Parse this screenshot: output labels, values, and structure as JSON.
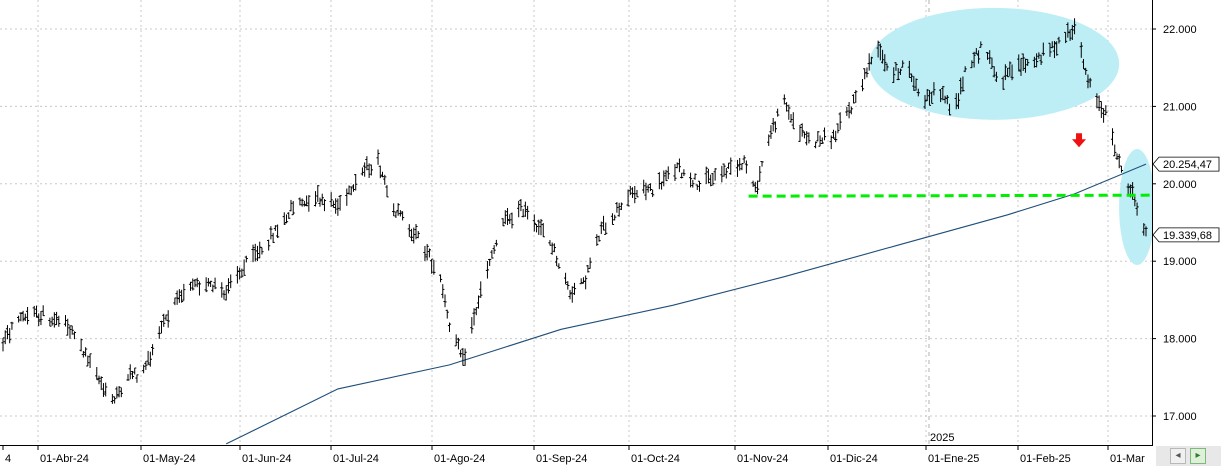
{
  "chart_data": {
    "type": "ohlc",
    "ylim": [
      16600,
      22400
    ],
    "y_ticks": [
      {
        "value": 22000,
        "label": "22.000"
      },
      {
        "value": 21000,
        "label": "21.000"
      },
      {
        "value": 20000,
        "label": "20.000"
      },
      {
        "value": 19000,
        "label": "19.000"
      },
      {
        "value": 18000,
        "label": "18.000"
      },
      {
        "value": 17000,
        "label": "17.000"
      }
    ],
    "x_labels": [
      "4",
      "01-Abr-24",
      "01-May-24",
      "01-Jun-24",
      "01-Jul-24",
      "01-Ago-24",
      "01-Sep-24",
      "01-Oct-24",
      "01-Nov-24",
      "01-Dic-24",
      "01-Ene-25",
      "01-Feb-25",
      "01-Mar"
    ],
    "year_marker": "2025",
    "price_labels": [
      {
        "value": 20254.47,
        "label": "20.254,47"
      },
      {
        "value": 19339.68,
        "label": "19.339,68"
      }
    ],
    "anchors": [
      [
        0,
        17950
      ],
      [
        8,
        18300
      ],
      [
        18,
        18300
      ],
      [
        27,
        18200
      ],
      [
        33,
        18000
      ],
      [
        42,
        17500
      ],
      [
        50,
        17200
      ],
      [
        56,
        17550
      ],
      [
        62,
        17500
      ],
      [
        72,
        18250
      ],
      [
        82,
        18600
      ],
      [
        92,
        18750
      ],
      [
        100,
        18600
      ],
      [
        110,
        19000
      ],
      [
        120,
        19300
      ],
      [
        130,
        19700
      ],
      [
        140,
        19850
      ],
      [
        150,
        19700
      ],
      [
        160,
        20150
      ],
      [
        168,
        20300
      ],
      [
        176,
        19650
      ],
      [
        186,
        19300
      ],
      [
        196,
        18800
      ],
      [
        200,
        18200
      ],
      [
        206,
        17700
      ],
      [
        214,
        18600
      ],
      [
        224,
        19500
      ],
      [
        234,
        19700
      ],
      [
        246,
        19200
      ],
      [
        254,
        18600
      ],
      [
        260,
        18700
      ],
      [
        268,
        19400
      ],
      [
        280,
        19850
      ],
      [
        292,
        19950
      ],
      [
        302,
        20200
      ],
      [
        312,
        20000
      ],
      [
        322,
        20150
      ],
      [
        332,
        20300
      ],
      [
        337,
        19900
      ],
      [
        343,
        20600
      ],
      [
        350,
        21050
      ],
      [
        356,
        20700
      ],
      [
        362,
        20550
      ],
      [
        372,
        20600
      ],
      [
        380,
        21000
      ],
      [
        386,
        21400
      ],
      [
        392,
        21800
      ],
      [
        398,
        21400
      ],
      [
        404,
        21550
      ],
      [
        412,
        21100
      ],
      [
        420,
        21200
      ],
      [
        426,
        20900
      ],
      [
        432,
        21550
      ],
      [
        440,
        21800
      ],
      [
        446,
        21300
      ],
      [
        454,
        21500
      ],
      [
        462,
        21600
      ],
      [
        470,
        21750
      ],
      [
        480,
        22050
      ],
      [
        486,
        21300
      ],
      [
        494,
        20900
      ],
      [
        500,
        20250
      ],
      [
        507,
        19800
      ],
      [
        512,
        19330
      ]
    ],
    "moving_average": [
      [
        100,
        16640
      ],
      [
        150,
        17350
      ],
      [
        200,
        17660
      ],
      [
        250,
        18120
      ],
      [
        300,
        18430
      ],
      [
        350,
        18800
      ],
      [
        400,
        19200
      ],
      [
        450,
        19600
      ],
      [
        480,
        19870
      ],
      [
        512,
        20254.47
      ]
    ],
    "annotations": {
      "support_level": 19840,
      "down_arrow": {
        "x": 482,
        "price": 20550
      },
      "ellipses": [
        {
          "x": 444,
          "price": 21550
        },
        {
          "x": 508,
          "price": 19700
        }
      ]
    },
    "colors": {
      "bars": "#000000",
      "moving_average": "#1f4e79",
      "support_line": "#00ee00",
      "ellipse_fill": "#bdeef6",
      "arrow": "#ee1111",
      "grid": "#c8c8c8"
    }
  },
  "scrollbar": {
    "left_icon": "pan-left-icon",
    "right_icon": "pan-right-icon"
  }
}
